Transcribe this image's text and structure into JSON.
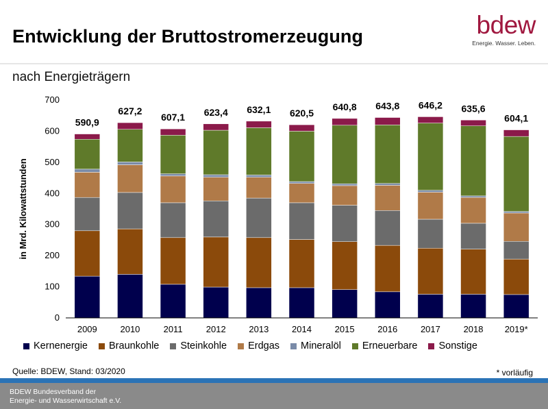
{
  "header": {
    "title": "Entwicklung der Bruttostromerzeugung",
    "subtitle": "nach Energieträgern"
  },
  "logo": {
    "word": "bdew",
    "tagline": "Energie. Wasser. Leben.",
    "color": "#a0183f"
  },
  "source": "Quelle: BDEW, Stand: 03/2020",
  "note": "* vorläufig",
  "footer": {
    "line1": "BDEW Bundesverband der",
    "line2": "Energie- und Wasserwirtschaft e.V."
  },
  "colors": {
    "rule": "#2b73b6",
    "footer_bg": "#8a8a8a"
  },
  "chart_data": {
    "type": "bar",
    "stacked": true,
    "title": "Entwicklung der Bruttostromerzeugung",
    "subtitle": "nach Energieträgern",
    "xlabel": "",
    "ylabel": "in Mrd. Kilowattstunden",
    "ylim": [
      0,
      700
    ],
    "yticks": [
      0,
      100,
      200,
      300,
      400,
      500,
      600,
      700
    ],
    "grid": false,
    "legend_position": "bottom",
    "categories": [
      "2009",
      "2010",
      "2011",
      "2012",
      "2013",
      "2014",
      "2015",
      "2016",
      "2017",
      "2018",
      "2019*"
    ],
    "totals": [
      "590,9",
      "627,2",
      "607,1",
      "623,4",
      "632,1",
      "620,5",
      "640,8",
      "643,8",
      "646,2",
      "635,6",
      "604,1"
    ],
    "series": [
      {
        "name": "Kernenergie",
        "color": "#00004d",
        "values": [
          134,
          140,
          108,
          99,
          97,
          97,
          91,
          84,
          76,
          76,
          75
        ]
      },
      {
        "name": "Braunkohle",
        "color": "#8b4a0b",
        "values": [
          146,
          146,
          150,
          161,
          161,
          155,
          154,
          149,
          148,
          145,
          114
        ]
      },
      {
        "name": "Steinkohle",
        "color": "#6b6b6b",
        "values": [
          107,
          117,
          112,
          116,
          127,
          118,
          117,
          112,
          93,
          83,
          57
        ]
      },
      {
        "name": "Erdgas",
        "color": "#b07a48",
        "values": [
          81,
          89,
          86,
          76,
          67,
          62,
          63,
          81,
          87,
          83,
          91
        ]
      },
      {
        "name": "Mineralöl",
        "color": "#7a8ba8",
        "values": [
          10,
          9,
          7,
          8,
          7,
          6,
          6,
          6,
          6,
          5,
          5
        ]
      },
      {
        "name": "Erneuerbare",
        "color": "#5f7a2a",
        "values": [
          96,
          105,
          124,
          143,
          152,
          162,
          188,
          188,
          216,
          225,
          241
        ]
      },
      {
        "name": "Sonstige",
        "color": "#8b1a4a",
        "values": [
          16.9,
          21.2,
          20.1,
          20.4,
          21.1,
          20.5,
          21.8,
          23.8,
          20.2,
          18.6,
          21.1
        ]
      }
    ]
  }
}
